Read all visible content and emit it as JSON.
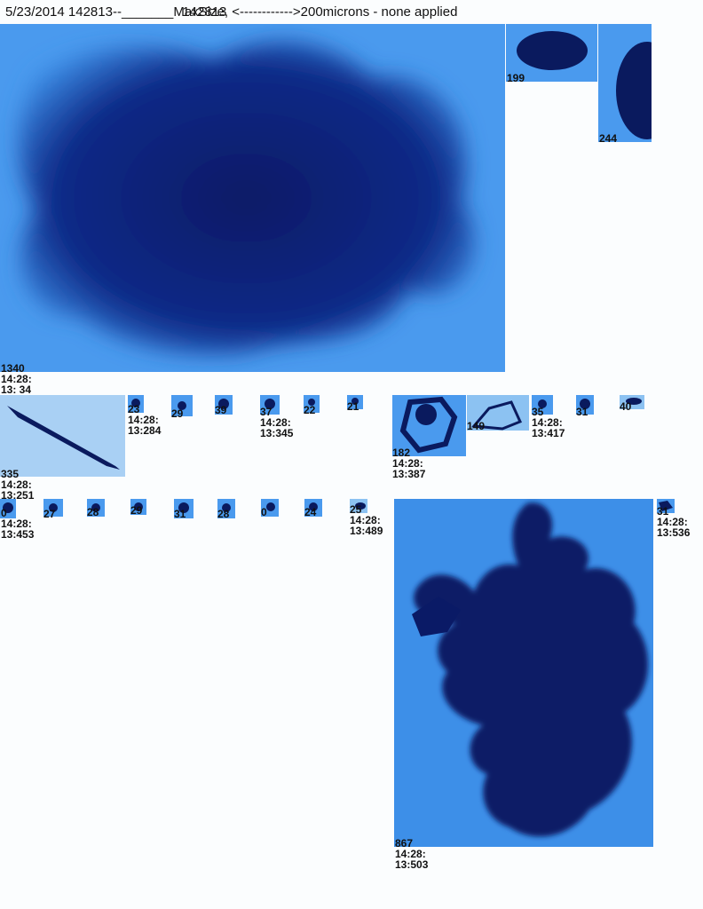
{
  "header": {
    "date_id": "5/23/2014 142813--_______",
    "overlap_a": "MaxSize,",
    "overlap_b": "142813",
    "scale": " <------------>200microns - none applied"
  },
  "particles": [
    {
      "id": "p1340",
      "size": "1340",
      "time": "14:28:\n13: 34"
    },
    {
      "id": "p199",
      "size": "199"
    },
    {
      "id": "p244",
      "size": "244"
    },
    {
      "id": "p335",
      "size": "335",
      "time": "14:28:\n13:251"
    },
    {
      "id": "p23a",
      "size": "23",
      "time": "14:28:\n13:284"
    },
    {
      "id": "p29a",
      "size": "29"
    },
    {
      "id": "p39",
      "size": "39"
    },
    {
      "id": "p37",
      "size": "37",
      "time": "14:28:\n13:345"
    },
    {
      "id": "p22",
      "size": "22"
    },
    {
      "id": "p21",
      "size": "21"
    },
    {
      "id": "p182",
      "size": "182",
      "time": "14:28:\n13:387"
    },
    {
      "id": "p149",
      "size": "149"
    },
    {
      "id": "p35",
      "size": "35",
      "time": "14:28:\n13:417"
    },
    {
      "id": "p31a",
      "size": "31"
    },
    {
      "id": "p40",
      "size": "40"
    },
    {
      "id": "p0a",
      "size": "0",
      "time": "14:28:\n13:453"
    },
    {
      "id": "p27",
      "size": "27"
    },
    {
      "id": "p28a",
      "size": "28"
    },
    {
      "id": "p29b",
      "size": "29"
    },
    {
      "id": "p31b",
      "size": "31"
    },
    {
      "id": "p28b",
      "size": "28"
    },
    {
      "id": "p0b",
      "size": "0"
    },
    {
      "id": "p24",
      "size": "24"
    },
    {
      "id": "p25",
      "size": "25",
      "time": "14:28:\n13:489"
    },
    {
      "id": "p867",
      "size": "867",
      "time": "14:28:\n13:503"
    },
    {
      "id": "p31c",
      "size": "31",
      "time": "14:28:\n13:536"
    }
  ],
  "colors": {
    "background": "#fbfdfe",
    "field": "#3d8fe8",
    "particle": "#0a1d6e"
  }
}
